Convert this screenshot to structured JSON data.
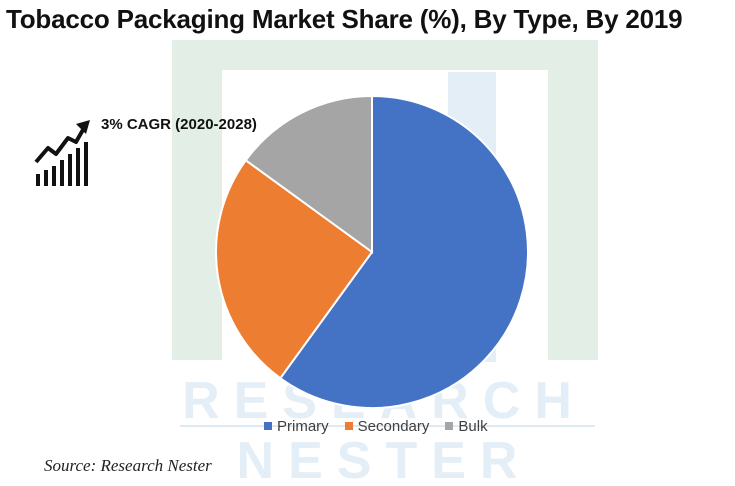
{
  "chart_data": {
    "type": "pie",
    "title": "Tobacco Packaging Market Share (%), By Type, By 2019",
    "categories": [
      "Primary",
      "Secondary",
      "Bulk"
    ],
    "values": [
      60,
      25,
      15
    ],
    "legend_position": "bottom",
    "annotation": "3% CAGR (2020-2028)"
  },
  "colors": {
    "Primary": "#4472C4",
    "Secondary": "#ED7D31",
    "Bulk": "#A5A5A5"
  },
  "icons": {
    "growth": "growth-chart-icon"
  },
  "source": "Source: Research Nester",
  "watermark": {
    "line1": "RESEARCH",
    "line2": "NESTER"
  }
}
